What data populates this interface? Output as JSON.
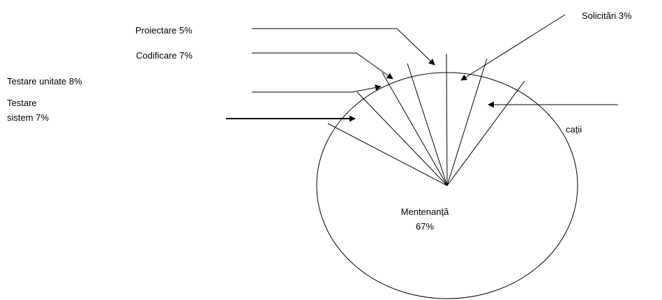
{
  "chart_data": {
    "type": "pie",
    "title": "",
    "slices": [
      {
        "label": "Mentenanță 67%",
        "value": 67,
        "line1": "Mentenanță",
        "line2": "67%"
      },
      {
        "label": "Testare sistem 7%",
        "value": 7,
        "line1": "Testare",
        "line2": "sistem 7%"
      },
      {
        "label": "Testare unitate 8%",
        "value": 8
      },
      {
        "label": "Codificare 7%",
        "value": 7
      },
      {
        "label": "Proiectare 5%",
        "value": 5
      },
      {
        "label": "Solicitări 3%",
        "value": 3
      },
      {
        "label": "cații",
        "value": 3
      }
    ],
    "colors": {
      "fill": "#ffffff",
      "stroke": "#000000"
    },
    "legend": "none"
  }
}
